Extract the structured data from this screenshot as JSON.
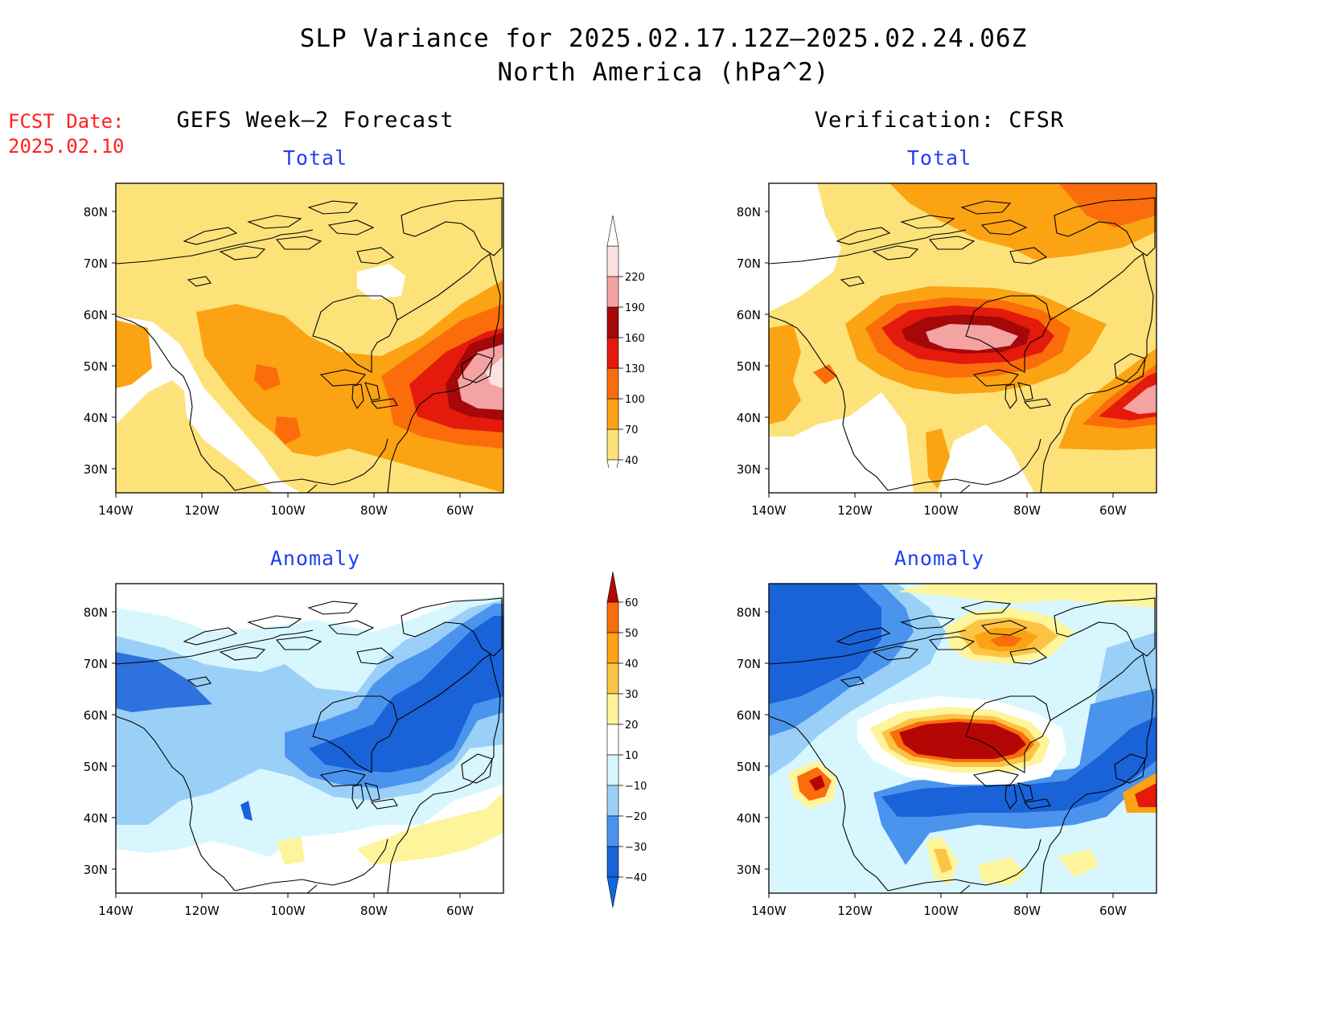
{
  "title": "SLP Variance for 2025.02.17.12Z–2025.02.24.06Z",
  "subtitle": "North America (hPa^2)",
  "fcst_date": {
    "label": "FCST Date:",
    "value": "2025.02.10"
  },
  "columns": {
    "left": "GEFS Week–2 Forecast",
    "right": "Verification: CFSR"
  },
  "panels": [
    {
      "id": "gefs-total",
      "label": "Total"
    },
    {
      "id": "cfsr-total",
      "label": "Total"
    },
    {
      "id": "gefs-anomaly",
      "label": "Anomaly"
    },
    {
      "id": "cfsr-anomaly",
      "label": "Anomaly"
    }
  ],
  "lat_labels": [
    "80N",
    "70N",
    "60N",
    "50N",
    "40N",
    "30N"
  ],
  "lon_labels": [
    "140W",
    "120W",
    "100W",
    "80W",
    "60W"
  ],
  "total_colorbar": {
    "levels": [
      "40",
      "70",
      "100",
      "130",
      "160",
      "190",
      "220"
    ],
    "colors": [
      "#fde27a",
      "#fba312",
      "#fb6d0a",
      "#e31a0c",
      "#a50808",
      "#f4a3a3",
      "#fde0e0"
    ]
  },
  "anomaly_colorbar": {
    "levels": [
      "60",
      "50",
      "40",
      "30",
      "20",
      "10",
      "−10",
      "−20",
      "−30",
      "−40"
    ],
    "colors": [
      "#b50606",
      "#fb6d0a",
      "#fba312",
      "#fcc445",
      "#fdf49b",
      "#ffffff",
      "#d8f6fe",
      "#9ad0f8",
      "#4a94ee",
      "#1a62d8",
      "#1068dc"
    ]
  }
}
